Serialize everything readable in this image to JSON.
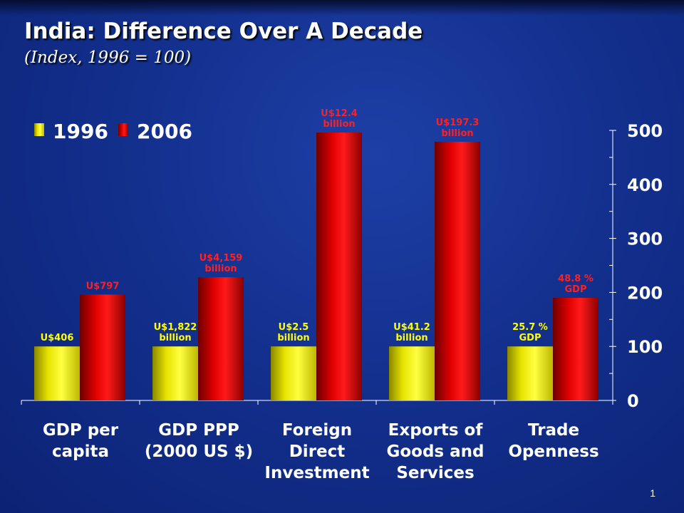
{
  "slide": {
    "title": "India: Difference Over A Decade",
    "subtitle": "(Index, 1996 = 100)",
    "page_number": "1"
  },
  "colors": {
    "series_1996": "#f2f200",
    "series_2006": "#e60000",
    "label_1996": "#ffff00",
    "label_2006": "#ff2020",
    "text": "#ffffff"
  },
  "chart_data": {
    "type": "bar",
    "categories": [
      [
        "GDP per",
        "capita"
      ],
      [
        "GDP PPP",
        "(2000 US $)"
      ],
      [
        "Foreign",
        "Direct",
        "Investment"
      ],
      [
        "Exports of",
        "Goods and",
        "Services"
      ],
      [
        "Trade",
        "Openness"
      ]
    ],
    "series": [
      {
        "name": "1996",
        "values": [
          100,
          100,
          100,
          100,
          100
        ],
        "labels": [
          [
            "U$406"
          ],
          [
            "U$1,822",
            "billion"
          ],
          [
            "U$2.5",
            "billion"
          ],
          [
            "U$41.2",
            "billion"
          ],
          [
            "25.7 %",
            "GDP"
          ]
        ]
      },
      {
        "name": "2006",
        "values": [
          196,
          228,
          496,
          479,
          190
        ],
        "labels": [
          [
            "U$797"
          ],
          [
            "U$4,159",
            "billion"
          ],
          [
            "U$12.4",
            "billion"
          ],
          [
            "U$197.3",
            "billion"
          ],
          [
            "48.8 %",
            "GDP"
          ]
        ]
      }
    ],
    "y_axis": {
      "position": "right",
      "range": [
        0,
        500
      ],
      "ticks": [
        0,
        100,
        200,
        300,
        400,
        500
      ]
    },
    "legend": {
      "position": "top-left"
    },
    "grid": false
  }
}
